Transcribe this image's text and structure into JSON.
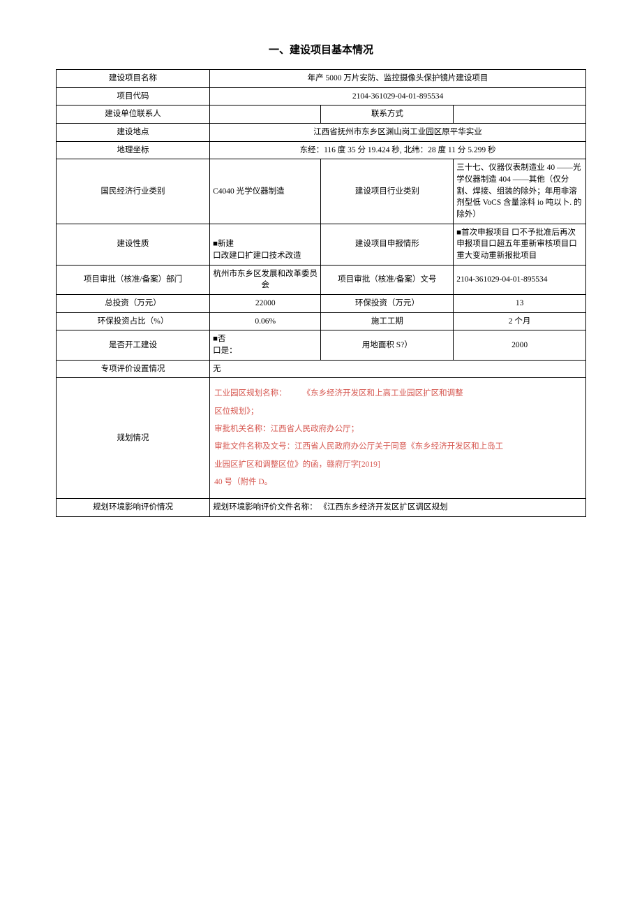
{
  "doc": {
    "heading": "一、建设项目基本情况",
    "rows": {
      "r1": {
        "l1": "建设项目名称",
        "v1": "年产 5000 万片安防、监控摄像头保护镜片建设项目"
      },
      "r2": {
        "l1": "项目代码",
        "v1": "2104-361029-04-01-895534"
      },
      "r3": {
        "l1": "建设单位联系人",
        "v1": "",
        "l2": "联系方式",
        "v2": ""
      },
      "r4": {
        "l1": "建设地点",
        "v1": "江西省抚州市东乡区渊山岗工业园区原平华实业"
      },
      "r5": {
        "l1": "地理坐标",
        "v1": "东经：116 度 35 分 19.424 秒, 北纬：28 度 11 分 5.299 秒"
      },
      "r6": {
        "l1": "国民经济行业类别",
        "v1": "C4040 光学仪器制造",
        "l2": "建设项目行业类别",
        "v2": "三十七、仪器仪表制造业 40 ——光学仪器制造 404 ——其他（仅分割、焊接、组装的除外；年用非溶剂型低\nVoCS 含量涂料 io 吨以卜. 的除外）"
      },
      "r7": {
        "l1": "建设性质",
        "v1a": "■新建",
        "v1b": "口改建口扩建口技术改造",
        "l2": "建设项目申报情形",
        "v2": "■首次申报项目\n口不予批准后再次申报项目口超五年重新审核项目口重大变动重新报批项目"
      },
      "r8": {
        "l1": "项目审批（核准/备案）部门",
        "v1": "杭州市东乡区发展和改革委员会",
        "l2": "项目审批（核准/备案）文号",
        "v2": "2104-361029-04-01-895534"
      },
      "r9": {
        "l1": "总投资（万元）",
        "v1": "22000",
        "l2": "环保投资（万元）",
        "v2": "13"
      },
      "r10": {
        "l1": "环保投资占比（%）",
        "v1": "0.06%",
        "l2": "施工工期",
        "v2": "2 个月"
      },
      "r11": {
        "l1": "是否开工建设",
        "v1a": "■否",
        "v1b": "口是：",
        "l2": "用地面积 S?）",
        "v2": "2000"
      },
      "r12": {
        "l1": "专项评价设置情况",
        "v1": "无"
      },
      "r13": {
        "l1": "规划情况",
        "line1a": "工业园区规划名称：",
        "line1b": "《东乡经济开发区和上高工业园区扩区和调整",
        "line2": "区位规划》；",
        "line3": "审批机关名称：江西省人民政府办公厅；",
        "line4": "审批文件名称及文号：江西省人民政府办公厅关于同意《东乡经济开发区和上岛工",
        "line5": "业园区扩区和调整区位》的函，赣府厅字[2019]",
        "line6": "40 号（附件 D。"
      },
      "r14": {
        "l1": "规划环境影响评价情况",
        "v1": "规划环境影响评价文件名称：  《江西东乡经济开发区扩区调区规划"
      }
    }
  }
}
